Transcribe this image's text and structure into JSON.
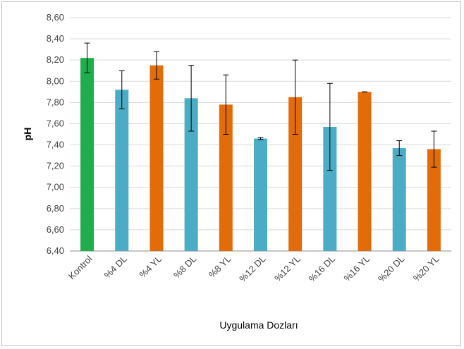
{
  "chart_data": {
    "type": "bar",
    "xlabel": "Uygulama Dozları",
    "ylabel": "pH",
    "ylim": [
      6.4,
      8.6
    ],
    "y_ticks": [
      "6,40",
      "6,60",
      "6,80",
      "7,00",
      "7,20",
      "7,40",
      "7,60",
      "7,80",
      "8,00",
      "8,20",
      "8,40",
      "8,60"
    ],
    "y_tick_values": [
      6.4,
      6.6,
      6.8,
      7.0,
      7.2,
      7.4,
      7.6,
      7.8,
      8.0,
      8.2,
      8.4,
      8.6
    ],
    "grid": true,
    "categories": [
      "Kontrol",
      "%4 DL",
      "%4 YL",
      "%8 DL",
      "%8 YL",
      "%12 DL",
      "%12 YL",
      "%16 DL",
      "%16 YL",
      "%20 DL",
      "%20 YL"
    ],
    "values": [
      8.22,
      7.92,
      8.15,
      7.84,
      7.78,
      7.46,
      7.85,
      7.57,
      7.9,
      7.37,
      7.36
    ],
    "error_plus_minus": [
      0.14,
      0.18,
      0.13,
      0.31,
      0.28,
      0.01,
      0.35,
      0.41,
      0.0,
      0.07,
      0.17
    ],
    "bar_colors": [
      "#1fae4b",
      "#4bacc6",
      "#e36c0a",
      "#4bacc6",
      "#e36c0a",
      "#4bacc6",
      "#e36c0a",
      "#4bacc6",
      "#e36c0a",
      "#4bacc6",
      "#e36c0a"
    ]
  }
}
